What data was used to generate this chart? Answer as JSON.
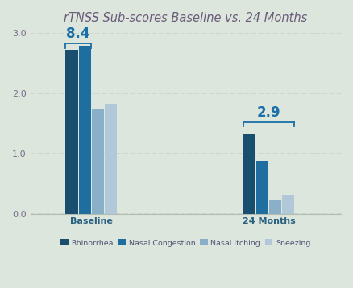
{
  "title": "rTNSS Sub-scores Baseline vs. 24 Months",
  "groups": [
    "Baseline",
    "24 Months"
  ],
  "categories": [
    "Rhinorrhea",
    "Nasal Congestion",
    "Nasal Itching",
    "Sneezing"
  ],
  "values": {
    "Baseline": [
      2.72,
      2.78,
      1.75,
      1.82
    ],
    "24 Months": [
      1.33,
      0.87,
      0.22,
      0.3
    ]
  },
  "bar_colors": [
    "#1a4e6e",
    "#1e6fa0",
    "#8aafc8",
    "#b0c8d8"
  ],
  "bracket_labels": [
    "8.4",
    "2.9"
  ],
  "bracket_color": "#1b6fa8",
  "background_color": "#dce6dc",
  "ylim": [
    0,
    3.0
  ],
  "yticks": [
    0.0,
    1.0,
    2.0,
    3.0
  ],
  "title_color": "#6b5b7b",
  "axis_xlabel_color": "#2a6080",
  "tick_label_color": "#7a6a8a",
  "grid_color": "#c8d4c8",
  "bracket_label_color": "#1b6fa8",
  "legend_text_color": "#555577",
  "spine_color": "#b0bdb0"
}
